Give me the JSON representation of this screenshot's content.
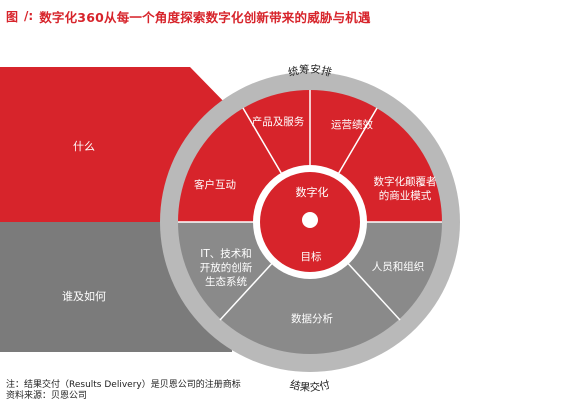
{
  "header": {
    "figure_label": "图",
    "figure_sep": "/:",
    "title": "数字化360从每一个角度探索数字化创新带来的威胁与机遇"
  },
  "diagram": {
    "left_top_label": "什么",
    "left_bottom_label": "谁及如何",
    "ring_top_label": "统筹安排",
    "ring_bottom_label": "结果交付",
    "segments": {
      "products": "产品及服务",
      "operations": "运营绩效",
      "business_model_l1": "数字化颠覆者",
      "business_model_l2": "的商业模式",
      "customer": "客户互动",
      "people": "人员和组织",
      "data": "数据分析",
      "it_l1": "IT、技术和",
      "it_l2": "开放的创新",
      "it_l3": "生态系统"
    },
    "core_top": "数字化",
    "core_bottom": "目标",
    "colors": {
      "red": "#d7242b",
      "gray": "#7b7b7b",
      "ring_gray": "#b9b9b9"
    }
  },
  "notes": {
    "line1": "注：结果交付（Results Delivery）是贝恩公司的注册商标",
    "line2": "资料来源：贝恩公司"
  }
}
